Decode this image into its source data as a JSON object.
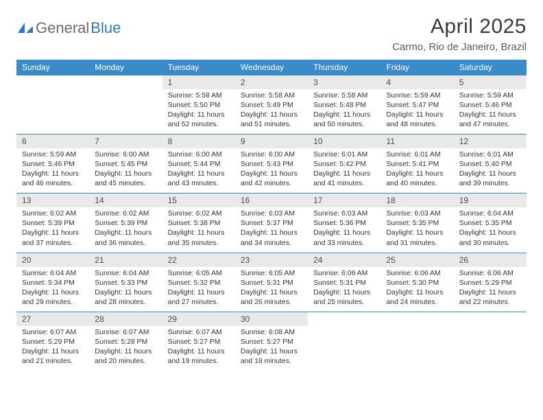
{
  "logo": {
    "text1": "General",
    "text2": "Blue"
  },
  "title": "April 2025",
  "subtitle": "Carmo, Rio de Janeiro, Brazil",
  "colors": {
    "header_bg": "#3b8bc9",
    "daynum_bg": "#e9e9e9",
    "rule": "#3b8bc9",
    "logo_gray": "#6b6b6b",
    "logo_blue": "#2e78c0"
  },
  "day_headers": [
    "Sunday",
    "Monday",
    "Tuesday",
    "Wednesday",
    "Thursday",
    "Friday",
    "Saturday"
  ],
  "weeks": [
    {
      "nums": [
        "",
        "",
        "1",
        "2",
        "3",
        "4",
        "5"
      ],
      "details": [
        null,
        null,
        {
          "sunrise": "5:58 AM",
          "sunset": "5:50 PM",
          "daylight": "11 hours and 52 minutes."
        },
        {
          "sunrise": "5:58 AM",
          "sunset": "5:49 PM",
          "daylight": "11 hours and 51 minutes."
        },
        {
          "sunrise": "5:58 AM",
          "sunset": "5:48 PM",
          "daylight": "11 hours and 50 minutes."
        },
        {
          "sunrise": "5:59 AM",
          "sunset": "5:47 PM",
          "daylight": "11 hours and 48 minutes."
        },
        {
          "sunrise": "5:59 AM",
          "sunset": "5:46 PM",
          "daylight": "11 hours and 47 minutes."
        }
      ]
    },
    {
      "nums": [
        "6",
        "7",
        "8",
        "9",
        "10",
        "11",
        "12"
      ],
      "details": [
        {
          "sunrise": "5:59 AM",
          "sunset": "5:46 PM",
          "daylight": "11 hours and 46 minutes."
        },
        {
          "sunrise": "6:00 AM",
          "sunset": "5:45 PM",
          "daylight": "11 hours and 45 minutes."
        },
        {
          "sunrise": "6:00 AM",
          "sunset": "5:44 PM",
          "daylight": "11 hours and 43 minutes."
        },
        {
          "sunrise": "6:00 AM",
          "sunset": "5:43 PM",
          "daylight": "11 hours and 42 minutes."
        },
        {
          "sunrise": "6:01 AM",
          "sunset": "5:42 PM",
          "daylight": "11 hours and 41 minutes."
        },
        {
          "sunrise": "6:01 AM",
          "sunset": "5:41 PM",
          "daylight": "11 hours and 40 minutes."
        },
        {
          "sunrise": "6:01 AM",
          "sunset": "5:40 PM",
          "daylight": "11 hours and 39 minutes."
        }
      ]
    },
    {
      "nums": [
        "13",
        "14",
        "15",
        "16",
        "17",
        "18",
        "19"
      ],
      "details": [
        {
          "sunrise": "6:02 AM",
          "sunset": "5:39 PM",
          "daylight": "11 hours and 37 minutes."
        },
        {
          "sunrise": "6:02 AM",
          "sunset": "5:39 PM",
          "daylight": "11 hours and 36 minutes."
        },
        {
          "sunrise": "6:02 AM",
          "sunset": "5:38 PM",
          "daylight": "11 hours and 35 minutes."
        },
        {
          "sunrise": "6:03 AM",
          "sunset": "5:37 PM",
          "daylight": "11 hours and 34 minutes."
        },
        {
          "sunrise": "6:03 AM",
          "sunset": "5:36 PM",
          "daylight": "11 hours and 33 minutes."
        },
        {
          "sunrise": "6:03 AM",
          "sunset": "5:35 PM",
          "daylight": "11 hours and 31 minutes."
        },
        {
          "sunrise": "6:04 AM",
          "sunset": "5:35 PM",
          "daylight": "11 hours and 30 minutes."
        }
      ]
    },
    {
      "nums": [
        "20",
        "21",
        "22",
        "23",
        "24",
        "25",
        "26"
      ],
      "details": [
        {
          "sunrise": "6:04 AM",
          "sunset": "5:34 PM",
          "daylight": "11 hours and 29 minutes."
        },
        {
          "sunrise": "6:04 AM",
          "sunset": "5:33 PM",
          "daylight": "11 hours and 28 minutes."
        },
        {
          "sunrise": "6:05 AM",
          "sunset": "5:32 PM",
          "daylight": "11 hours and 27 minutes."
        },
        {
          "sunrise": "6:05 AM",
          "sunset": "5:31 PM",
          "daylight": "11 hours and 26 minutes."
        },
        {
          "sunrise": "6:06 AM",
          "sunset": "5:31 PM",
          "daylight": "11 hours and 25 minutes."
        },
        {
          "sunrise": "6:06 AM",
          "sunset": "5:30 PM",
          "daylight": "11 hours and 24 minutes."
        },
        {
          "sunrise": "6:06 AM",
          "sunset": "5:29 PM",
          "daylight": "11 hours and 22 minutes."
        }
      ]
    },
    {
      "nums": [
        "27",
        "28",
        "29",
        "30",
        "",
        "",
        ""
      ],
      "details": [
        {
          "sunrise": "6:07 AM",
          "sunset": "5:29 PM",
          "daylight": "11 hours and 21 minutes."
        },
        {
          "sunrise": "6:07 AM",
          "sunset": "5:28 PM",
          "daylight": "11 hours and 20 minutes."
        },
        {
          "sunrise": "6:07 AM",
          "sunset": "5:27 PM",
          "daylight": "11 hours and 19 minutes."
        },
        {
          "sunrise": "6:08 AM",
          "sunset": "5:27 PM",
          "daylight": "11 hours and 18 minutes."
        },
        null,
        null,
        null
      ]
    }
  ],
  "labels": {
    "sunrise": "Sunrise:",
    "sunset": "Sunset:",
    "daylight": "Daylight:"
  }
}
